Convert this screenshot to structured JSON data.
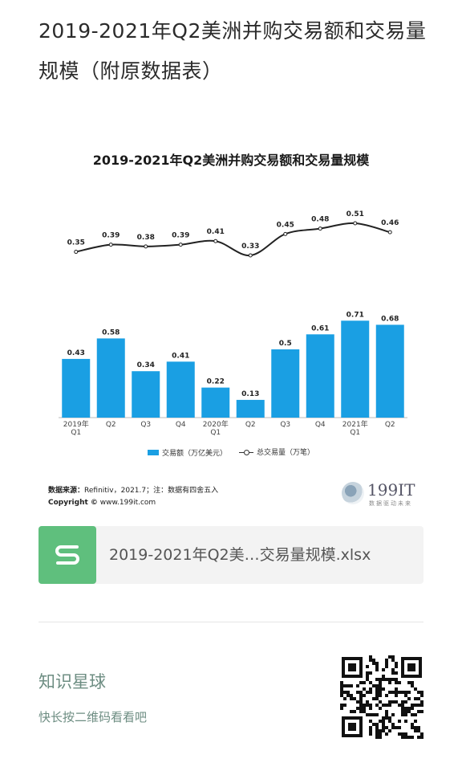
{
  "page_title": "2019-2021年Q2美洲并购交易额和交易量规模（附原数据表）",
  "chart_data": {
    "type": "bar+line",
    "title": "2019-2021年Q2美洲并购交易额和交易量规模",
    "categories": [
      "2019年\nQ1",
      "Q2",
      "Q3",
      "Q4",
      "2020年\nQ1",
      "Q2",
      "Q3",
      "Q4",
      "2021年\nQ1",
      "Q2"
    ],
    "series": [
      {
        "name": "交易额（万亿美元）",
        "kind": "bar",
        "color": "#1a9fe3",
        "values": [
          0.43,
          0.58,
          0.34,
          0.41,
          0.22,
          0.13,
          0.5,
          0.61,
          0.71,
          0.68
        ]
      },
      {
        "name": "总交易量（万笔）",
        "kind": "line",
        "color": "#222222",
        "values": [
          0.35,
          0.39,
          0.38,
          0.39,
          0.41,
          0.33,
          0.45,
          0.48,
          0.51,
          0.46
        ]
      }
    ],
    "legend_position": "bottom",
    "grid": false
  },
  "source": {
    "label": "数据来源：",
    "text": "Refinitiv，2021.7；注：数据有四舍五入",
    "copyright_label": "Copyright ©",
    "copyright_text": "www.199it.com"
  },
  "brand": {
    "name": "199IT",
    "tagline": "数据驱动未来"
  },
  "file": {
    "name": "2019-2021年Q2美…交易量规模.xlsx",
    "icon": "spreadsheet-s-icon",
    "icon_color": "#5fbf7d"
  },
  "footer": {
    "title": "知识星球",
    "subtitle": "快长按二维码看看吧"
  }
}
